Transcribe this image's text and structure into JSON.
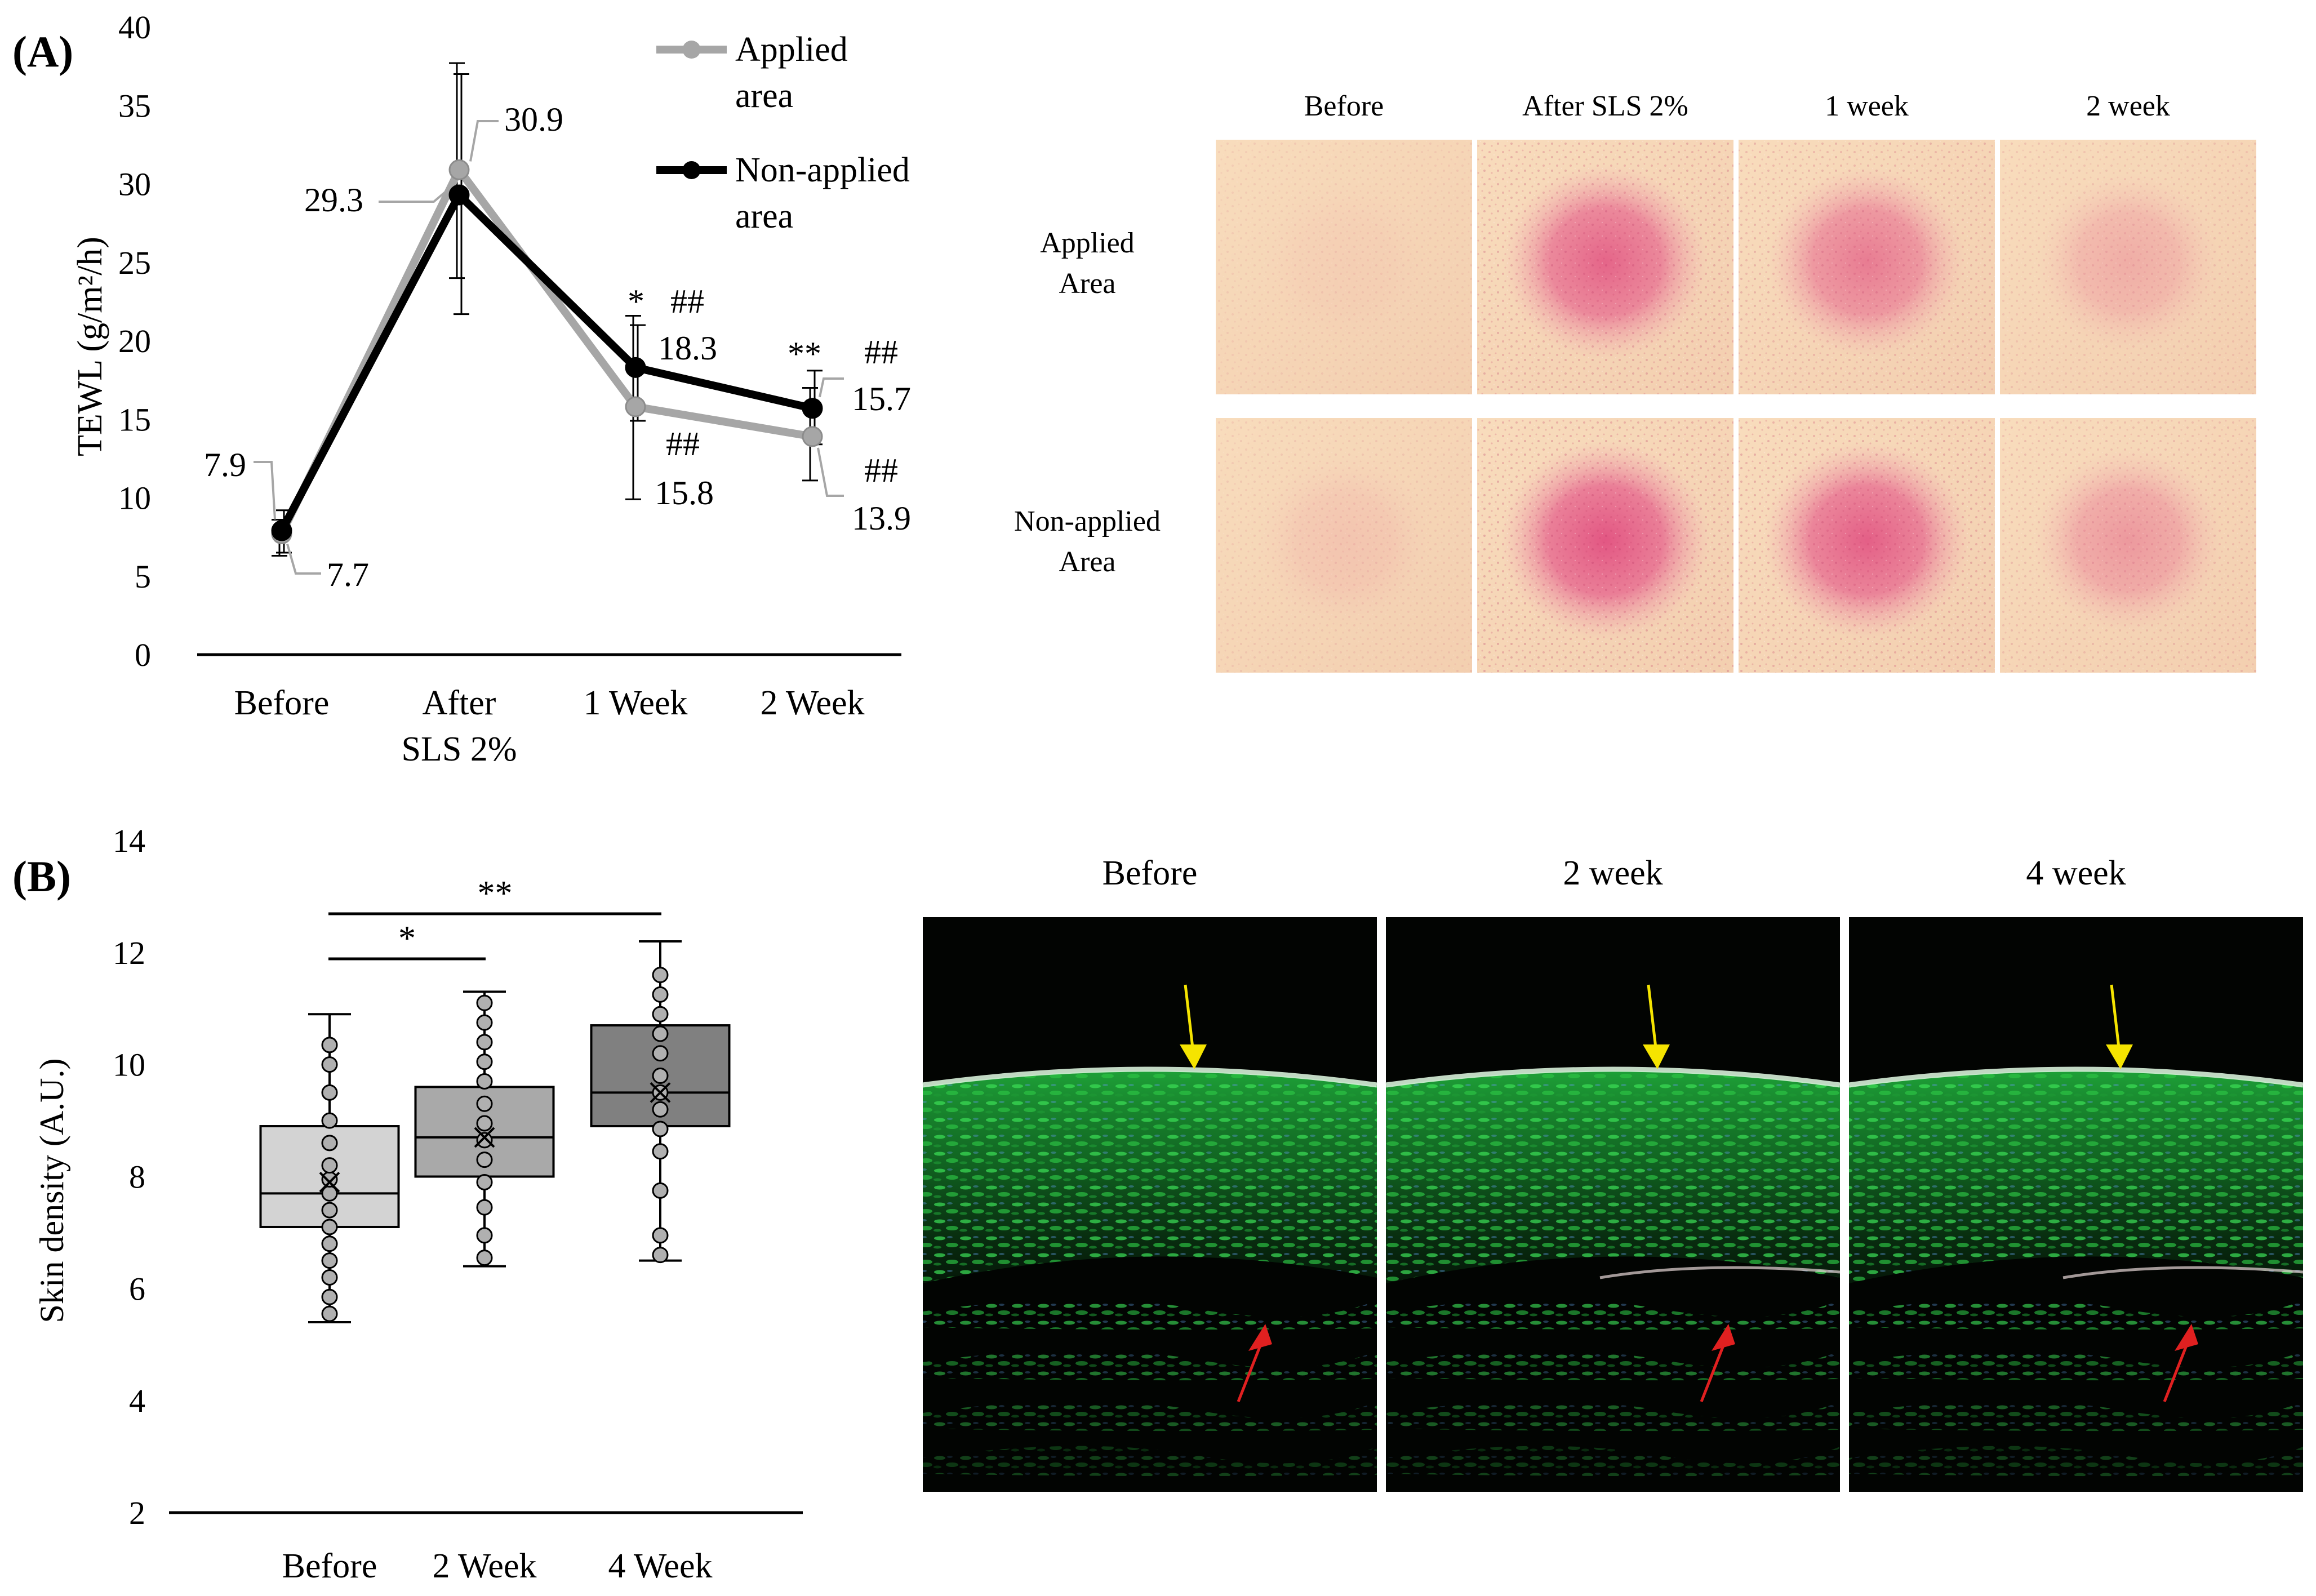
{
  "panel_a": {
    "label": "(A)",
    "photo_columns": [
      "Before",
      "After SLS 2%",
      "1 week",
      "2 week"
    ],
    "photo_rows": [
      [
        "Applied",
        "Area"
      ],
      [
        "Non-applied",
        "Area"
      ]
    ],
    "photo_intensity": [
      [
        0.05,
        0.78,
        0.62,
        0.28
      ],
      [
        0.12,
        0.88,
        0.82,
        0.42
      ]
    ]
  },
  "panel_b": {
    "label": "(B)",
    "image_columns": [
      "Before",
      "2 week",
      "4 week"
    ]
  },
  "chart_data": [
    {
      "type": "line",
      "ylabel": "TEWL (g/m²/h)",
      "categories": [
        [
          "Before"
        ],
        [
          "After",
          "SLS 2%"
        ],
        [
          "1 Week"
        ],
        [
          "2 Week"
        ]
      ],
      "ylim": [
        0,
        40
      ],
      "yticks": [
        0,
        5,
        10,
        15,
        20,
        25,
        30,
        35,
        40
      ],
      "grid": false,
      "legend_position": "top-right",
      "series": [
        {
          "name": "Applied area",
          "name_lines": [
            "Applied",
            "area"
          ],
          "color": "#a6a6a6",
          "values": [
            7.7,
            30.9,
            15.8,
            13.9
          ],
          "error_low": [
            6.3,
            24.0,
            9.9,
            11.1
          ],
          "error_high": [
            8.6,
            37.7,
            21.6,
            17.0
          ],
          "labels": [
            "7.7",
            "30.9",
            "15.8",
            "13.9"
          ],
          "markers": [
            "",
            "",
            "##",
            "##"
          ]
        },
        {
          "name": "Non-applied area",
          "name_lines": [
            "Non-applied",
            "area"
          ],
          "color": "#000000",
          "values": [
            7.9,
            29.3,
            18.3,
            15.7
          ],
          "error_low": [
            6.5,
            21.7,
            14.9,
            13.4
          ],
          "error_high": [
            9.2,
            37.0,
            21.0,
            18.1
          ],
          "labels": [
            "7.9",
            "29.3",
            "18.3",
            "15.7"
          ],
          "markers": [
            "",
            "",
            "##",
            "##"
          ]
        }
      ],
      "significance_between_areas": [
        "",
        "",
        "*",
        "**"
      ]
    },
    {
      "type": "box",
      "ylabel": "Skin density (A.U.)",
      "categories": [
        "Before",
        "2 Week",
        "4 Week"
      ],
      "ylim": [
        2,
        14
      ],
      "yticks": [
        2,
        4,
        6,
        8,
        10,
        12,
        14
      ],
      "grid": false,
      "fill_colors": [
        "#d3d3d3",
        "#a9a9a9",
        "#808080"
      ],
      "boxes": [
        {
          "min": 5.4,
          "q1": 7.1,
          "median": 7.7,
          "q3": 8.9,
          "max": 10.9,
          "mean": 7.9,
          "points": [
            5.55,
            5.85,
            6.2,
            6.5,
            6.8,
            7.1,
            7.4,
            7.7,
            7.95,
            8.2,
            8.6,
            9.0,
            9.5,
            10.0,
            10.35
          ]
        },
        {
          "min": 6.4,
          "q1": 8.0,
          "median": 8.7,
          "q3": 9.6,
          "max": 11.3,
          "mean": 8.7,
          "points": [
            6.55,
            6.95,
            7.45,
            7.9,
            8.3,
            8.65,
            8.95,
            9.3,
            9.7,
            10.05,
            10.4,
            10.75,
            11.1
          ]
        },
        {
          "min": 6.5,
          "q1": 8.9,
          "median": 9.5,
          "q3": 10.7,
          "max": 12.2,
          "mean": 9.5,
          "points": [
            6.6,
            6.95,
            7.75,
            8.45,
            8.85,
            9.2,
            9.5,
            9.8,
            10.2,
            10.55,
            10.9,
            11.25,
            11.6
          ]
        }
      ],
      "significance": [
        {
          "from": 0,
          "to": 1,
          "label": "*"
        },
        {
          "from": 0,
          "to": 2,
          "label": "**"
        }
      ]
    }
  ]
}
